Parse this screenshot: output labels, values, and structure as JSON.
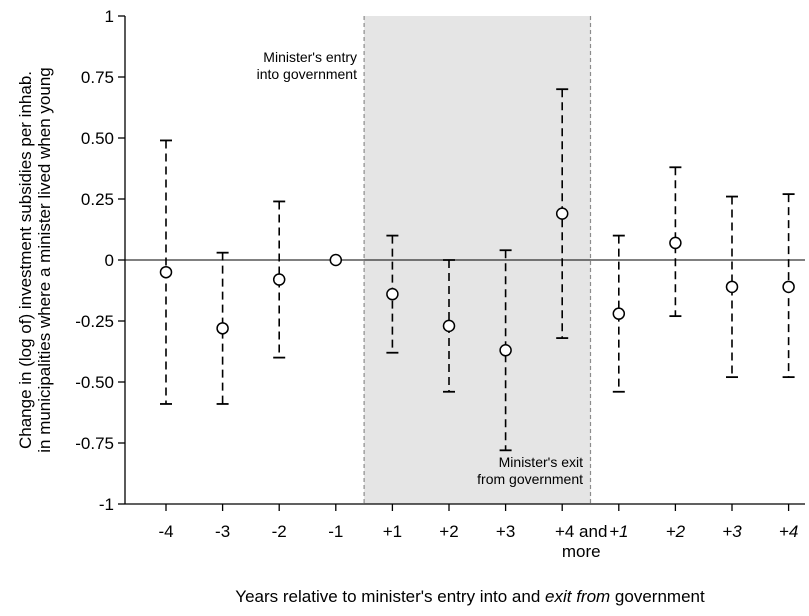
{
  "chart_data": {
    "type": "scatter",
    "subtype": "point-estimates-with-confidence-intervals",
    "ylabel_lines": [
      "Change in (log of) investment subsidies per inhab.",
      "in municipalities where a minister lived when young"
    ],
    "xlabel": {
      "before": "Years relative to minister's entry into and ",
      "italic": "exit from",
      "after": " government"
    },
    "ylim": [
      -1,
      1
    ],
    "yticks": [
      {
        "value": 1,
        "label": "1"
      },
      {
        "value": 0.75,
        "label": "0.75"
      },
      {
        "value": 0.5,
        "label": "0.50"
      },
      {
        "value": 0.25,
        "label": "0.25"
      },
      {
        "value": 0,
        "label": "0"
      },
      {
        "value": -0.25,
        "label": "-0.25"
      },
      {
        "value": -0.5,
        "label": "-0.50"
      },
      {
        "value": -0.75,
        "label": "-0.75"
      },
      {
        "value": -1,
        "label": "-1"
      }
    ],
    "points": [
      {
        "label": "-4",
        "estimate": -0.05,
        "ci_low": -0.59,
        "ci_high": 0.49,
        "italic": false
      },
      {
        "label": "-3",
        "estimate": -0.28,
        "ci_low": -0.59,
        "ci_high": 0.03,
        "italic": false
      },
      {
        "label": "-2",
        "estimate": -0.08,
        "ci_low": -0.4,
        "ci_high": 0.24,
        "italic": false
      },
      {
        "label": "-1",
        "estimate": 0.0,
        "ci_low": null,
        "ci_high": null,
        "italic": false
      },
      {
        "label": "+1",
        "estimate": -0.14,
        "ci_low": -0.38,
        "ci_high": 0.1,
        "italic": false
      },
      {
        "label": "+2",
        "estimate": -0.27,
        "ci_low": -0.54,
        "ci_high": 0.0,
        "italic": false
      },
      {
        "label": "+3",
        "estimate": -0.37,
        "ci_low": -0.78,
        "ci_high": 0.04,
        "italic": false
      },
      {
        "label": "+4 and more",
        "estimate": 0.19,
        "ci_low": -0.32,
        "ci_high": 0.7,
        "italic": false
      },
      {
        "label": "+1",
        "estimate": -0.22,
        "ci_low": -0.54,
        "ci_high": 0.1,
        "italic": true
      },
      {
        "label": "+2",
        "estimate": 0.07,
        "ci_low": -0.23,
        "ci_high": 0.38,
        "italic": true
      },
      {
        "label": "+3",
        "estimate": -0.11,
        "ci_low": -0.48,
        "ci_high": 0.26,
        "italic": true
      },
      {
        "label": "+4",
        "estimate": -0.11,
        "ci_low": -0.48,
        "ci_high": 0.27,
        "italic": true
      }
    ],
    "shaded_region": {
      "from_after_index": 3,
      "to_after_index": 7,
      "color": "#e5e5e5"
    },
    "annotations": {
      "entry_lines": [
        "Minister's entry",
        "into government"
      ],
      "exit_lines": [
        "Minister's exit",
        "from government"
      ]
    },
    "grid": false
  }
}
